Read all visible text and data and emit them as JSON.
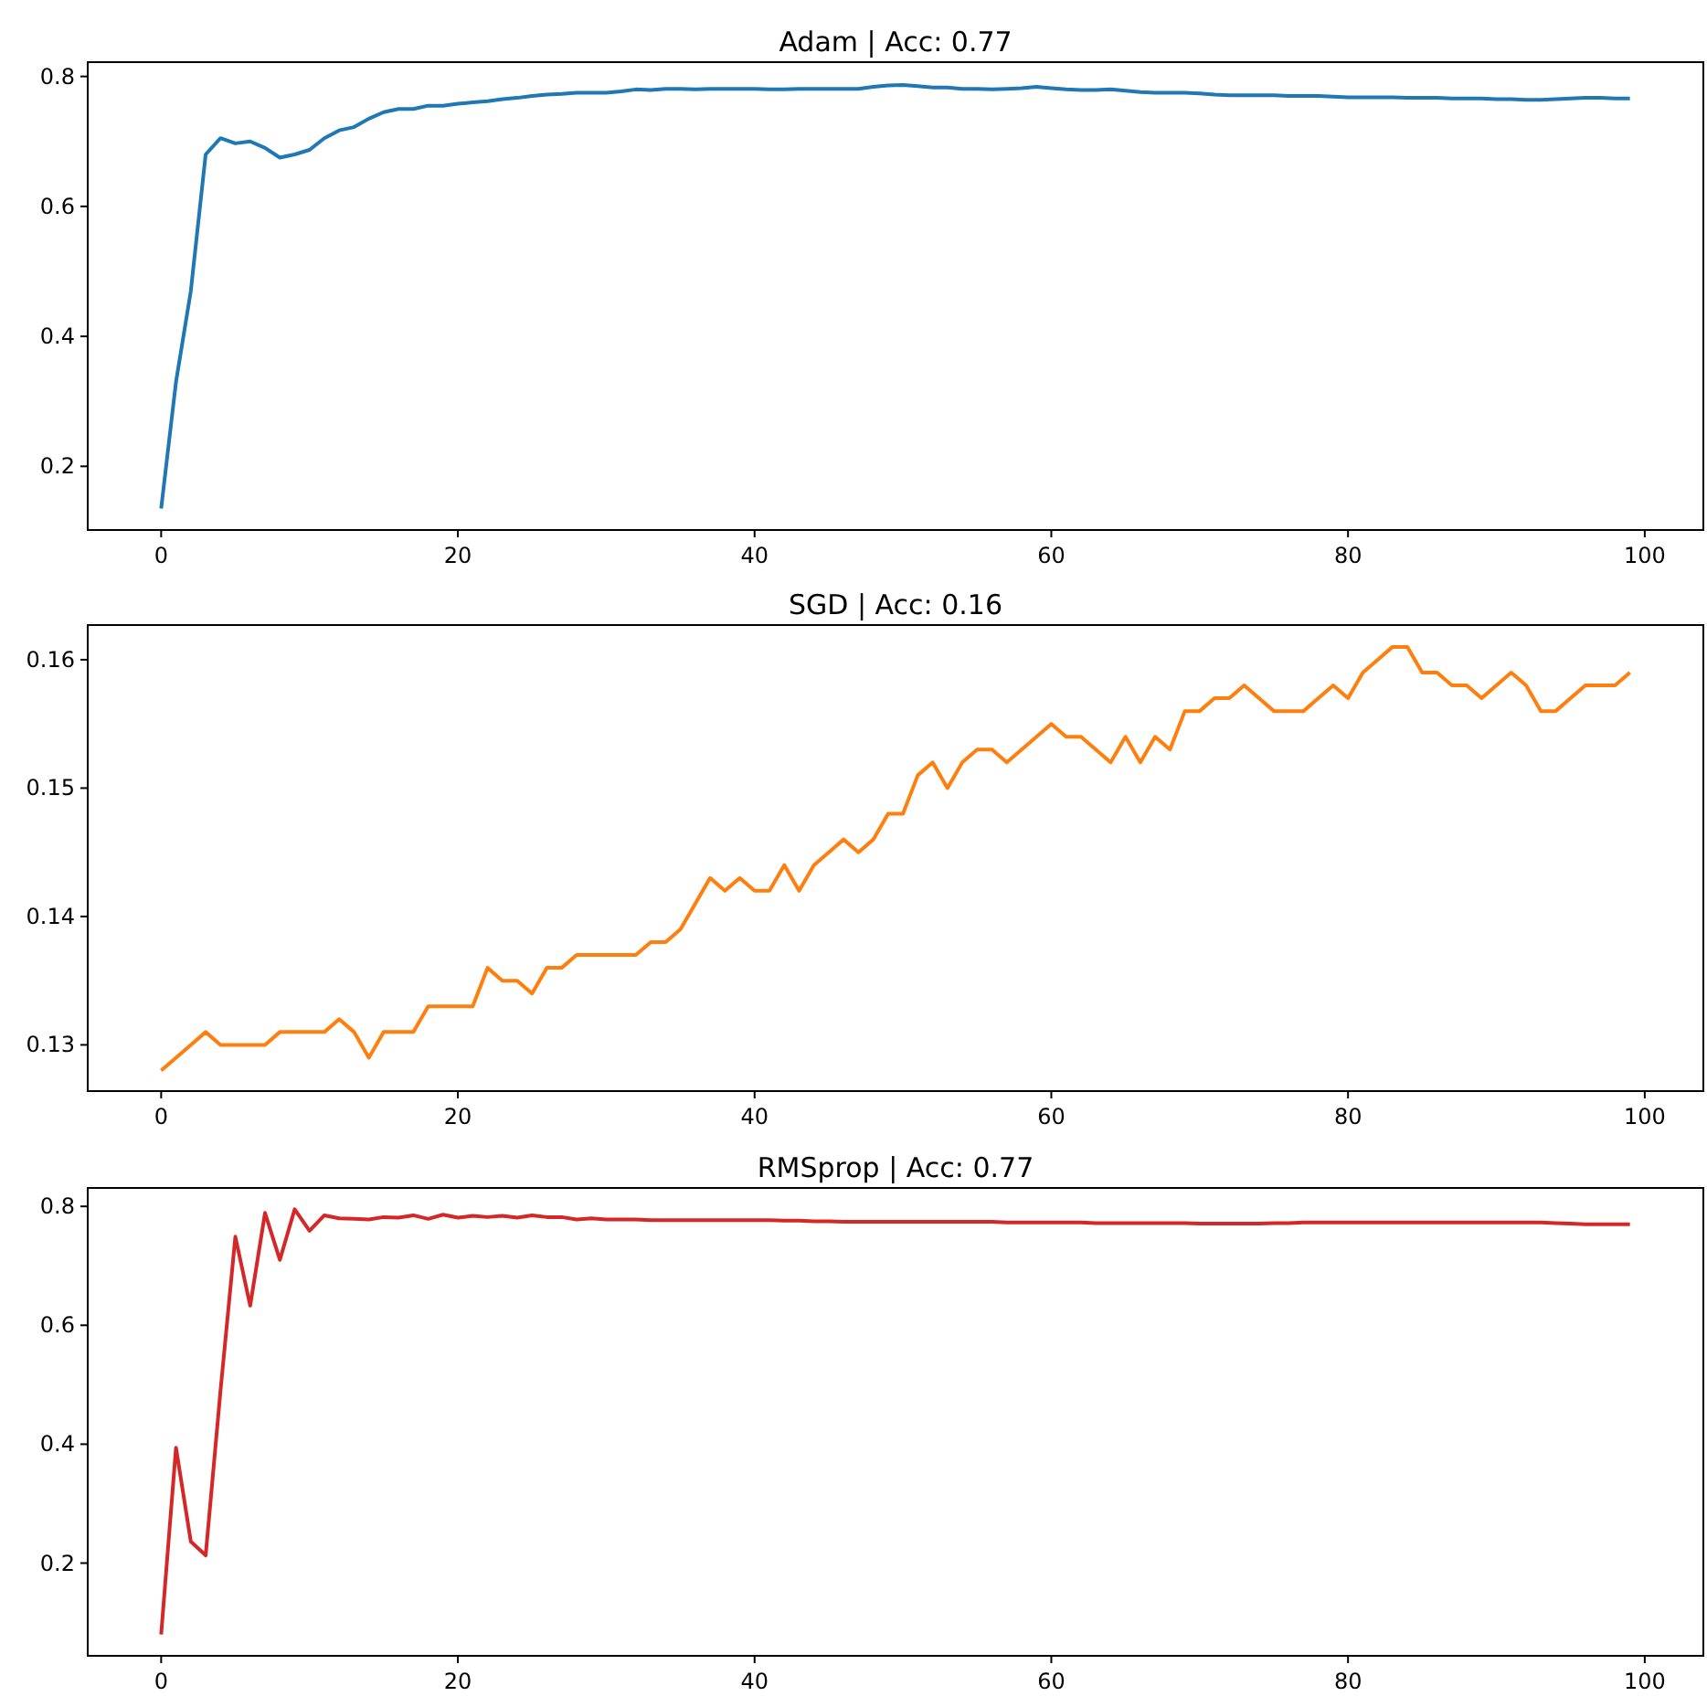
{
  "chart_data": [
    {
      "type": "line",
      "title": "Adam | Acc: 0.77",
      "x": [
        0,
        1,
        2,
        3,
        4,
        5,
        6,
        7,
        8,
        9,
        10,
        11,
        12,
        13,
        14,
        15,
        16,
        17,
        18,
        19,
        20,
        21,
        22,
        23,
        24,
        25,
        26,
        27,
        28,
        29,
        30,
        31,
        32,
        33,
        34,
        35,
        36,
        37,
        38,
        39,
        40,
        41,
        42,
        43,
        44,
        45,
        46,
        47,
        48,
        49,
        50,
        51,
        52,
        53,
        54,
        55,
        56,
        57,
        58,
        59,
        60,
        61,
        62,
        63,
        64,
        65,
        66,
        67,
        68,
        69,
        70,
        71,
        72,
        73,
        74,
        75,
        76,
        77,
        78,
        79,
        80,
        81,
        82,
        83,
        84,
        85,
        86,
        87,
        88,
        89,
        90,
        91,
        92,
        93,
        94,
        95,
        96,
        97,
        98,
        99
      ],
      "xlim": [
        -4.95,
        103.95
      ],
      "xticks": [
        0,
        20,
        40,
        60,
        80,
        100
      ],
      "ylim": [
        0.102,
        0.822
      ],
      "yticks": [
        0.2,
        0.4,
        0.6,
        0.8
      ],
      "series": [
        {
          "color": "#1f77b4",
          "values": [
            0.135,
            0.33,
            0.47,
            0.68,
            0.705,
            0.697,
            0.7,
            0.69,
            0.675,
            0.68,
            0.687,
            0.705,
            0.717,
            0.722,
            0.735,
            0.745,
            0.75,
            0.75,
            0.755,
            0.755,
            0.758,
            0.76,
            0.762,
            0.765,
            0.767,
            0.77,
            0.772,
            0.773,
            0.775,
            0.775,
            0.775,
            0.777,
            0.78,
            0.779,
            0.781,
            0.781,
            0.78,
            0.781,
            0.781,
            0.781,
            0.781,
            0.78,
            0.78,
            0.781,
            0.781,
            0.781,
            0.781,
            0.781,
            0.784,
            0.786,
            0.787,
            0.785,
            0.783,
            0.783,
            0.781,
            0.781,
            0.78,
            0.781,
            0.782,
            0.784,
            0.782,
            0.78,
            0.779,
            0.779,
            0.78,
            0.778,
            0.776,
            0.775,
            0.775,
            0.775,
            0.774,
            0.772,
            0.771,
            0.771,
            0.771,
            0.771,
            0.77,
            0.77,
            0.77,
            0.769,
            0.768,
            0.768,
            0.768,
            0.768,
            0.767,
            0.767,
            0.767,
            0.766,
            0.766,
            0.766,
            0.765,
            0.765,
            0.764,
            0.764,
            0.765,
            0.766,
            0.767,
            0.767,
            0.766,
            0.766
          ]
        }
      ]
    },
    {
      "type": "line",
      "title": "SGD | Acc: 0.16",
      "x": [
        0,
        1,
        2,
        3,
        4,
        5,
        6,
        7,
        8,
        9,
        10,
        11,
        12,
        13,
        14,
        15,
        16,
        17,
        18,
        19,
        20,
        21,
        22,
        23,
        24,
        25,
        26,
        27,
        28,
        29,
        30,
        31,
        32,
        33,
        34,
        35,
        36,
        37,
        38,
        39,
        40,
        41,
        42,
        43,
        44,
        45,
        46,
        47,
        48,
        49,
        50,
        51,
        52,
        53,
        54,
        55,
        56,
        57,
        58,
        59,
        60,
        61,
        62,
        63,
        64,
        65,
        66,
        67,
        68,
        69,
        70,
        71,
        72,
        73,
        74,
        75,
        76,
        77,
        78,
        79,
        80,
        81,
        82,
        83,
        84,
        85,
        86,
        87,
        88,
        89,
        90,
        91,
        92,
        93,
        94,
        95,
        96,
        97,
        98,
        99
      ],
      "xlim": [
        -4.95,
        103.95
      ],
      "xticks": [
        0,
        20,
        40,
        60,
        80,
        100
      ],
      "ylim": [
        0.1264,
        0.1627
      ],
      "yticks": [
        0.13,
        0.14,
        0.15,
        0.16
      ],
      "series": [
        {
          "color": "#ff7f0e",
          "values": [
            0.128,
            0.129,
            0.13,
            0.131,
            0.13,
            0.13,
            0.13,
            0.13,
            0.131,
            0.131,
            0.131,
            0.131,
            0.132,
            0.131,
            0.129,
            0.131,
            0.131,
            0.131,
            0.133,
            0.133,
            0.133,
            0.133,
            0.136,
            0.135,
            0.135,
            0.134,
            0.136,
            0.136,
            0.137,
            0.137,
            0.137,
            0.137,
            0.137,
            0.138,
            0.138,
            0.139,
            0.141,
            0.143,
            0.142,
            0.143,
            0.142,
            0.142,
            0.144,
            0.142,
            0.144,
            0.145,
            0.146,
            0.145,
            0.146,
            0.148,
            0.148,
            0.151,
            0.152,
            0.15,
            0.152,
            0.153,
            0.153,
            0.152,
            0.153,
            0.154,
            0.155,
            0.154,
            0.154,
            0.153,
            0.152,
            0.154,
            0.152,
            0.154,
            0.153,
            0.156,
            0.156,
            0.157,
            0.157,
            0.158,
            0.157,
            0.156,
            0.156,
            0.156,
            0.157,
            0.158,
            0.157,
            0.159,
            0.16,
            0.161,
            0.161,
            0.159,
            0.159,
            0.158,
            0.158,
            0.157,
            0.158,
            0.159,
            0.158,
            0.156,
            0.156,
            0.157,
            0.158,
            0.158,
            0.158,
            0.159
          ]
        }
      ]
    },
    {
      "type": "line",
      "title": "RMSprop | Acc: 0.77",
      "x": [
        0,
        1,
        2,
        3,
        4,
        5,
        6,
        7,
        8,
        9,
        10,
        11,
        12,
        13,
        14,
        15,
        16,
        17,
        18,
        19,
        20,
        21,
        22,
        23,
        24,
        25,
        26,
        27,
        28,
        29,
        30,
        31,
        32,
        33,
        34,
        35,
        36,
        37,
        38,
        39,
        40,
        41,
        42,
        43,
        44,
        45,
        46,
        47,
        48,
        49,
        50,
        51,
        52,
        53,
        54,
        55,
        56,
        57,
        58,
        59,
        60,
        61,
        62,
        63,
        64,
        65,
        66,
        67,
        68,
        69,
        70,
        71,
        72,
        73,
        74,
        75,
        76,
        77,
        78,
        79,
        80,
        81,
        82,
        83,
        84,
        85,
        86,
        87,
        88,
        89,
        90,
        91,
        92,
        93,
        94,
        95,
        96,
        97,
        98,
        99
      ],
      "xlim": [
        -4.95,
        103.95
      ],
      "xticks": [
        0,
        20,
        40,
        60,
        80,
        100
      ],
      "ylim": [
        0.044,
        0.831
      ],
      "yticks": [
        0.2,
        0.4,
        0.6,
        0.8
      ],
      "series": [
        {
          "color": "#d62728",
          "values": [
            0.08,
            0.394,
            0.236,
            0.213,
            0.49,
            0.749,
            0.633,
            0.789,
            0.71,
            0.795,
            0.759,
            0.785,
            0.78,
            0.779,
            0.778,
            0.782,
            0.781,
            0.785,
            0.779,
            0.786,
            0.781,
            0.784,
            0.782,
            0.784,
            0.781,
            0.785,
            0.782,
            0.782,
            0.778,
            0.78,
            0.778,
            0.778,
            0.778,
            0.777,
            0.777,
            0.777,
            0.777,
            0.777,
            0.777,
            0.777,
            0.777,
            0.777,
            0.776,
            0.776,
            0.775,
            0.775,
            0.774,
            0.774,
            0.774,
            0.774,
            0.774,
            0.774,
            0.774,
            0.774,
            0.774,
            0.774,
            0.774,
            0.773,
            0.773,
            0.773,
            0.773,
            0.773,
            0.773,
            0.772,
            0.772,
            0.772,
            0.772,
            0.772,
            0.772,
            0.772,
            0.771,
            0.771,
            0.771,
            0.771,
            0.771,
            0.772,
            0.772,
            0.773,
            0.773,
            0.773,
            0.773,
            0.773,
            0.773,
            0.773,
            0.773,
            0.773,
            0.773,
            0.773,
            0.773,
            0.773,
            0.773,
            0.773,
            0.773,
            0.773,
            0.772,
            0.771,
            0.77,
            0.77,
            0.77,
            0.77
          ]
        }
      ]
    }
  ]
}
